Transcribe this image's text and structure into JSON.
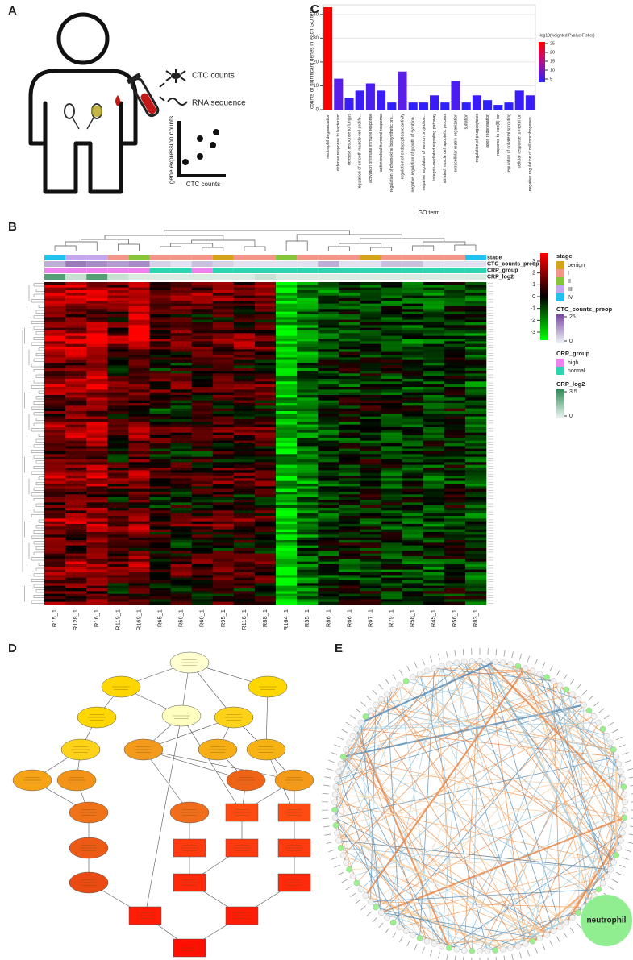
{
  "panel_labels": [
    "A",
    "B",
    "C",
    "D",
    "E"
  ],
  "panel_a": {
    "labels": [
      "CTC counts",
      "RNA sequence"
    ],
    "y_axis": "gene expression counts",
    "x_axis": "CTC counts"
  },
  "chart_data": {
    "type": "bar",
    "y_label": "counts of significant genes in each GO term",
    "x_label": "GO term",
    "categories": [
      "neutrophil degranulation",
      "defense response to bacterium",
      "defense response to fungus",
      "regulation of smooth muscle cell prolife...",
      "activation of innate immune response",
      "antimicrobial humoral response",
      "regulation of chemokine biosynthetic pro...",
      "regulation of endopeptidase activity",
      "negative regulation of growth of symbion...",
      "negative regulation of neuron projection...",
      "integrin-mediated signaling pathway",
      "striated muscle cell apoptotic process",
      "extracellular matrix organization",
      "sulfation",
      "regulation of phagocytosis",
      "axon regeneration",
      "response to iron(II) ion",
      "regulation of collateral sprouting",
      "cellular response to metal ion",
      "negative regulation of cell morphogenes..."
    ],
    "values": [
      43,
      13,
      5,
      8,
      11,
      8,
      3,
      16,
      3,
      3,
      6,
      3,
      12,
      3,
      6,
      4,
      2,
      3,
      8,
      6
    ],
    "colors": [
      "#ff0000",
      "#5b1ee6",
      "#3a1df6",
      "#3a1df6",
      "#4a1eef",
      "#3a1df6",
      "#2f1ff9",
      "#5a1ee8",
      "#2f1ff9",
      "#2f1ff9",
      "#3a1df6",
      "#2f1ff9",
      "#4a1eef",
      "#2f1ff9",
      "#3a1df6",
      "#2f1ff9",
      "#2a1ffb",
      "#2f1ff9",
      "#3a1df6",
      "#3a1df6"
    ],
    "ylim": [
      0,
      44
    ],
    "yticks": [
      0,
      10,
      20,
      30,
      40
    ],
    "grid": true,
    "color_title": "-log10(weighted Pvalue-Fisher)",
    "color_ticks": [
      25,
      20,
      15,
      10,
      5
    ]
  },
  "heatmap": {
    "columns": [
      "R15_1",
      "R128_1",
      "R16_1",
      "R119_1",
      "R169_1",
      "R65_1",
      "R59_1",
      "R60_1",
      "R95_1",
      "R116_1",
      "R88_1",
      "R164_1",
      "R55_1",
      "R86_1",
      "R66_1",
      "R67_1",
      "R79_1",
      "R58_1",
      "R45_1",
      "R56_1",
      "R83_1"
    ],
    "annotation_names": [
      "stage",
      "CTC_counts_preop",
      "CRP_group",
      "CRP_log2"
    ],
    "scale_ticks": [
      3,
      2,
      1,
      0,
      -1,
      -2,
      -3
    ],
    "stage_title": "stage",
    "stage_items": [
      "benign",
      "I",
      "II",
      "III",
      "IV"
    ],
    "stage_colors": [
      "#d4a418",
      "#f4958a",
      "#86c43a",
      "#c3a6ee",
      "#1fc2ec"
    ],
    "stage": [
      4,
      3,
      3,
      1,
      2,
      1,
      1,
      1,
      0,
      1,
      1,
      2,
      1,
      1,
      1,
      0,
      1,
      1,
      1,
      1,
      4
    ],
    "ctc_title": "CTC_counts_preop",
    "ctc_ticks": [
      25,
      0
    ],
    "crp_group_title": "CRP_group",
    "crp_group_items": [
      "high",
      "normal"
    ],
    "crp_group_colors": [
      "#ee82ee",
      "#2dd4b0"
    ],
    "crp_group": [
      0,
      0,
      0,
      0,
      0,
      1,
      1,
      0,
      1,
      1,
      1,
      1,
      1,
      1,
      1,
      1,
      1,
      1,
      1,
      1,
      1
    ],
    "crp_log2_title": "CRP_log2",
    "crp_log2_ticks": [
      3.5,
      0
    ]
  },
  "network": {
    "label": "neutrophil"
  }
}
